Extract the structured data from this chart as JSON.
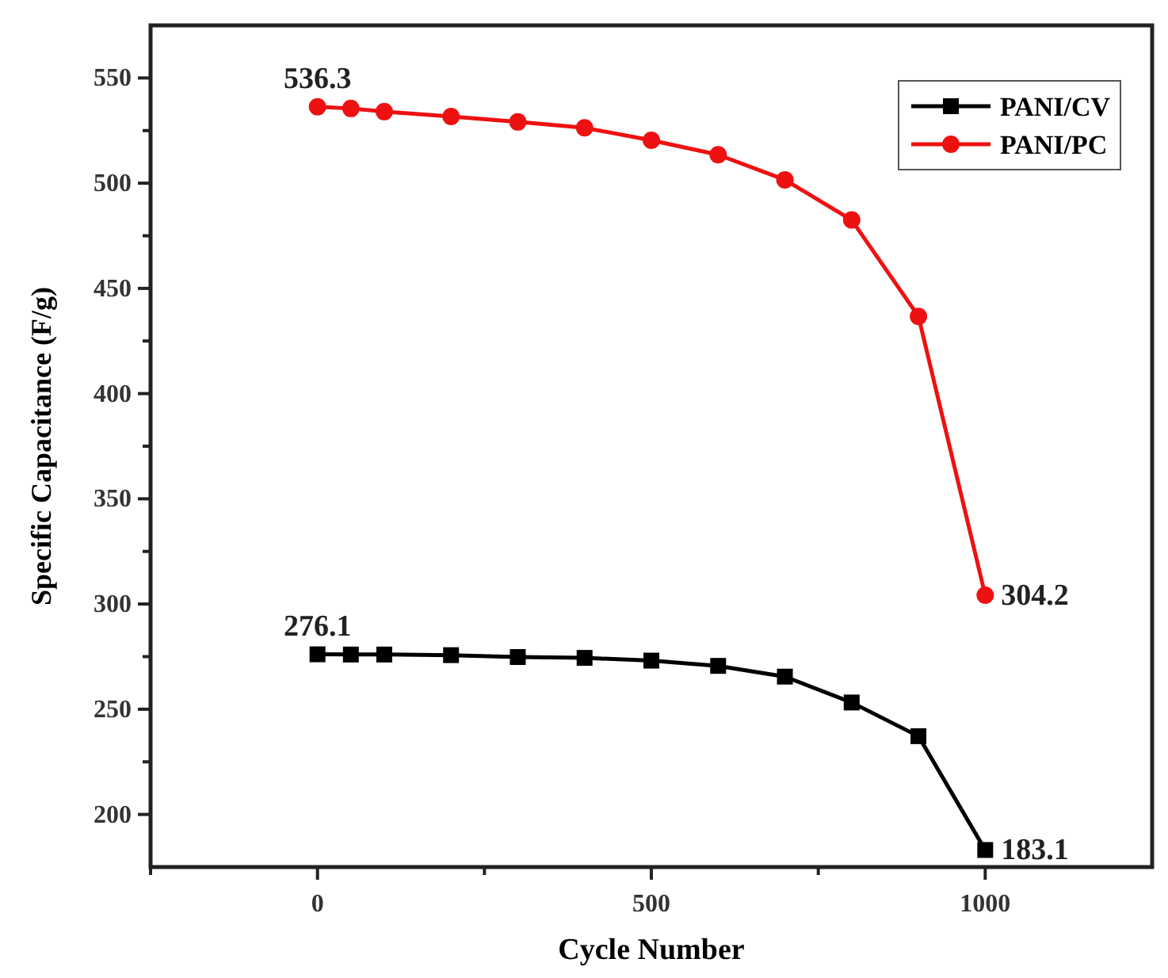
{
  "chart_data": {
    "type": "line",
    "xlabel": "Cycle Number",
    "ylabel": "Specific Capacitance (F/g)",
    "x": [
      0,
      50,
      100,
      200,
      300,
      400,
      500,
      600,
      700,
      800,
      900,
      1000
    ],
    "series": [
      {
        "name": "PANI/CV",
        "color": "#000000",
        "marker": "square",
        "values": [
          276.1,
          276,
          276,
          275.7,
          274.8,
          274.4,
          273.1,
          270.6,
          265.5,
          253.2,
          237.2,
          183.1
        ],
        "value_labels": [
          "276.1",
          null,
          null,
          null,
          null,
          null,
          null,
          null,
          null,
          null,
          null,
          "183.1"
        ]
      },
      {
        "name": "PANI/PC",
        "color": "#ee1111",
        "marker": "circle",
        "values": [
          536.3,
          535.5,
          534,
          531.7,
          529.1,
          526.3,
          520.4,
          513.5,
          501.6,
          482.5,
          436.7,
          304.2
        ],
        "value_labels": [
          "536.3",
          null,
          null,
          null,
          null,
          null,
          null,
          null,
          null,
          null,
          null,
          "304.2"
        ]
      }
    ],
    "xlim": [
      -250,
      1250
    ],
    "xticks": [
      {
        "value": -250,
        "label": null
      },
      0,
      {
        "value": 250,
        "label": null
      },
      500,
      {
        "value": 750,
        "label": null
      },
      1000
    ],
    "ylim": [
      175,
      575
    ],
    "yticks": [
      200,
      {
        "value": 225,
        "label": null
      },
      250,
      {
        "value": 275,
        "label": null
      },
      300,
      {
        "value": 325,
        "label": null
      },
      350,
      {
        "value": 375,
        "label": null
      },
      400,
      {
        "value": 425,
        "label": null
      },
      450,
      {
        "value": 475,
        "label": null
      },
      500,
      {
        "value": 525,
        "label": null
      },
      550
    ],
    "legend": "top right",
    "grid": false,
    "line_style": "solid"
  }
}
